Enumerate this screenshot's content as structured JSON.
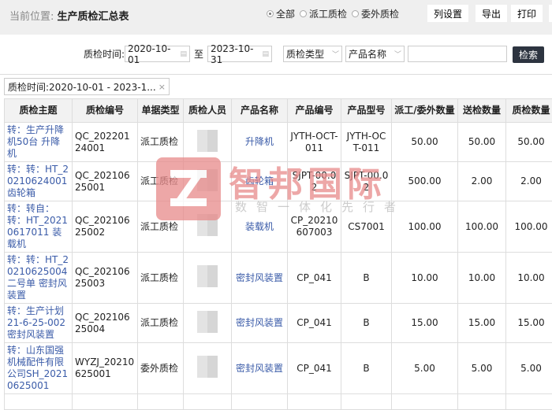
{
  "header": {
    "location_label": "当前位置:",
    "page_title": "生产质检汇总表"
  },
  "filter_radios": [
    {
      "label": "全部",
      "checked": true
    },
    {
      "label": "派工质检",
      "checked": false
    },
    {
      "label": "委外质检",
      "checked": false
    }
  ],
  "toolbar": {
    "columns": "列设置",
    "export": "导出",
    "print": "打印"
  },
  "filters": {
    "time_label": "质检时间:",
    "start": "2020-10-01",
    "to": "至",
    "end": "2023-10-31",
    "type_select": "质检类型",
    "product_select": "产品名称",
    "keyword": "",
    "search": "检索"
  },
  "active_chip": {
    "text": "质检时间:2020-10-01 - 2023-1...",
    "close": "×"
  },
  "table": {
    "headers": [
      "质检主题",
      "质检编号",
      "单据类型",
      "质检人员",
      "产品名称",
      "产品编号",
      "产品型号",
      "派工/委外数量",
      "送检数量",
      "质检数量"
    ],
    "rows": [
      [
        "转：生产升降机50台 升降机",
        "QC_20220124001",
        "派工质检",
        "",
        "升降机",
        "JYTH-OCT-011",
        "JYTH-OCT-011",
        "50.00",
        "50.00",
        "50.00"
      ],
      [
        "转：转：HT_20210624001 齿轮箱",
        "QC_20210625001",
        "派工质检",
        "",
        "齿轮箱",
        "SJPT-00.02",
        "SJPT-00.02",
        "500.00",
        "2.00",
        "2.00"
      ],
      [
        "转：转自：转：HT_20210617011 装载机",
        "QC_20210625002",
        "派工质检",
        "",
        "装载机",
        "CP_20210607003",
        "CS7001",
        "100.00",
        "100.00",
        "100.00"
      ],
      [
        "转：转：HT_20210625004二号单 密封风装置",
        "QC_20210625003",
        "派工质检",
        "",
        "密封风装置",
        "CP_041",
        "B",
        "10.00",
        "10.00",
        "10.00"
      ],
      [
        "转：生产计划21-6-25-002 密封风装置",
        "QC_20210625004",
        "派工质检",
        "",
        "密封风装置",
        "CP_041",
        "B",
        "15.00",
        "15.00",
        "15.00"
      ],
      [
        "转：山东国强机械配件有限公司SH_20210625001",
        "WYZJ_20210625001",
        "委外质检",
        "",
        "密封风装置",
        "CP_041",
        "B",
        "5.00",
        "5.00",
        "5.00"
      ]
    ]
  },
  "watermark": {
    "brand": "智邦国际",
    "slogan": "数智一体化先行者",
    "color": "#e88a8a"
  }
}
